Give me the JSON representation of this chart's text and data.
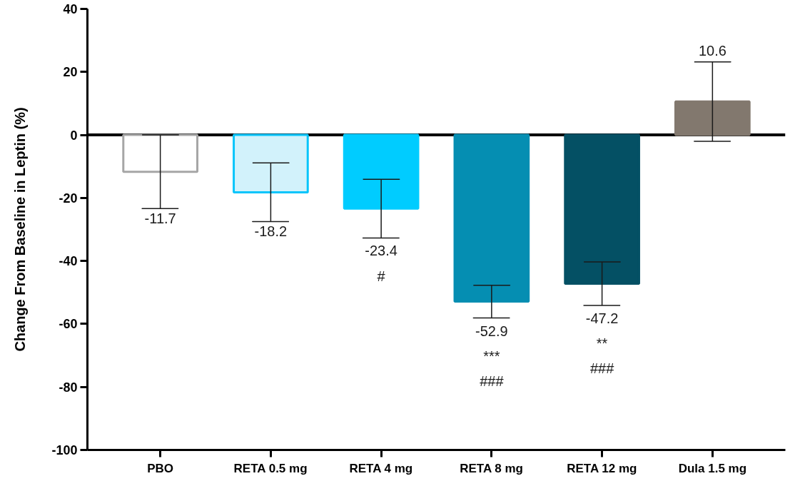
{
  "chart_data": {
    "type": "bar",
    "ylabel": "Change From Baseline in Leptin (%)",
    "categories": [
      "PBO",
      "RETA 0.5 mg",
      "RETA 4 mg",
      "RETA 8 mg",
      "RETA 12 mg",
      "Dula 1.5 mg"
    ],
    "values": [
      -11.7,
      -18.2,
      -23.4,
      -52.9,
      -47.2,
      10.6
    ],
    "colors": [
      "#ffffff",
      "#d2f2fb",
      "#00ccff",
      "#058eb2",
      "#045064",
      "#82786e"
    ],
    "errors": [
      11.7,
      9.3,
      9.3,
      5.2,
      6.9,
      12.6
    ],
    "value_labels": [
      "-11.7",
      "-18.2",
      "-23.4\n#",
      "-52.9\n***\n###",
      "-47.2\n**\n###",
      "10.6"
    ],
    "ylim": [
      -100,
      40
    ],
    "yticks": [
      -100,
      -80,
      -60,
      -40,
      -20,
      0,
      20,
      40
    ],
    "ref_lines": [
      {
        "axis": "y",
        "value": 0,
        "color": "#000000"
      }
    ]
  }
}
